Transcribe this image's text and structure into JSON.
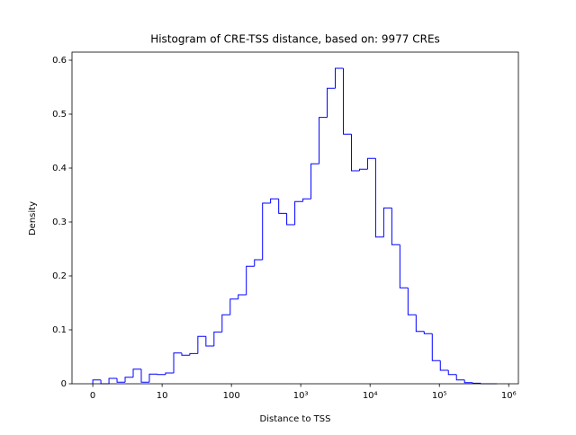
{
  "chart_data": {
    "type": "histogram",
    "histtype": "step",
    "title": "Histogram of CRE-TSS distance, based on: 9977 CREs",
    "xlabel": "Distance to TSS",
    "ylabel": "Density",
    "xscale": "symlog",
    "linthresh": 10,
    "color": "#0000ff",
    "bins": [
      0,
      1.166,
      2.332,
      3.498,
      4.664,
      5.83,
      6.996,
      8.162,
      9.328,
      11.2,
      14.7,
      19.2,
      25.1,
      32.8,
      42.9,
      56.1,
      73.4,
      96,
      125.5,
      164,
      215,
      281,
      367,
      481,
      628,
      822,
      1076,
      1407,
      1840,
      2406,
      3148,
      4118,
      5385,
      7043,
      9213,
      12050,
      15760,
      20610,
      26960,
      35270,
      46130,
      60340,
      78920,
      103200,
      135000,
      176600,
      231000,
      302100,
      395200,
      516900,
      676100
    ],
    "values": [
      0.007,
      0,
      0.01,
      0.003,
      0.012,
      0.027,
      0.003,
      0.018,
      0.017,
      0.02,
      0.057,
      0.053,
      0.056,
      0.088,
      0.07,
      0.096,
      0.128,
      0.157,
      0.165,
      0.218,
      0.23,
      0.335,
      0.343,
      0.316,
      0.295,
      0.338,
      0.343,
      0.408,
      0.494,
      0.548,
      0.585,
      0.463,
      0.395,
      0.398,
      0.418,
      0.272,
      0.326,
      0.258,
      0.178,
      0.128,
      0.097,
      0.093,
      0.043,
      0.025,
      0.017,
      0.007,
      0.002,
      0.001,
      0,
      0
    ],
    "xlim": [
      -3,
      1380000
    ],
    "ylim": [
      0,
      0.615
    ],
    "xticks": [
      0,
      10,
      100,
      {
        "value": 1000,
        "label": "10³"
      },
      {
        "value": 10000,
        "label": "10⁴"
      },
      {
        "value": 100000,
        "label": "10⁵"
      },
      {
        "value": 1000000,
        "label": "10⁶"
      }
    ],
    "yticks": [
      0,
      0.1,
      0.2,
      0.3,
      0.4,
      0.5,
      0.6
    ]
  }
}
